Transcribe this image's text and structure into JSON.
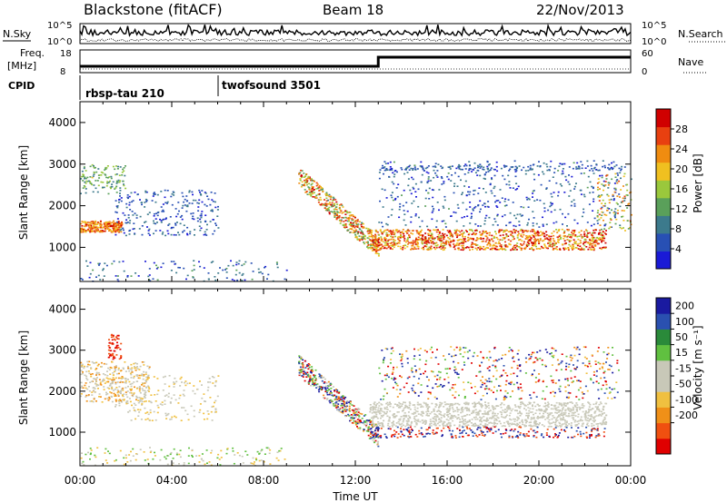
{
  "header": {
    "station": "Blackstone (fitACF)",
    "beam": "Beam 18",
    "date": "22/Nov/2013"
  },
  "top_panels": {
    "nsky_label": "N.Sky",
    "nsearch_label": "N.Search",
    "noise_ticks": [
      "10^5",
      "10^0"
    ],
    "freq_label_1": "Freq.",
    "freq_label_2": "[MHz]",
    "freq_ticks": [
      "18",
      "8"
    ],
    "nave_label": "Nave",
    "nave_ticks": [
      "60",
      "0"
    ],
    "cpid_label": "CPID",
    "cpid_segments": [
      {
        "name": "rbsp-tau 210",
        "start_hour": 0
      },
      {
        "name": "twofsound 3501",
        "start_hour": 6
      }
    ]
  },
  "colors": {
    "power_scale": [
      "#1a1ad6",
      "#2850b4",
      "#3c7a8c",
      "#5aa05a",
      "#9ac83c",
      "#f0c020",
      "#f08c10",
      "#e84010",
      "#d00000"
    ],
    "velocity_scale": [
      "#e00000",
      "#f05010",
      "#f09018",
      "#f0c040",
      "#c8c8b8",
      "#c8c8b8",
      "#60c040",
      "#2a8a3a",
      "#2a50b0",
      "#1a1aa0"
    ]
  },
  "chart_data": [
    {
      "type": "heatmap",
      "title": "Power",
      "ylabel": "Slant Range [km]",
      "xlabel": "Time UT",
      "x_ticks": [
        "00:00",
        "04:00",
        "08:00",
        "12:00",
        "16:00",
        "20:00",
        "00:00"
      ],
      "xlim_hours": [
        0,
        24
      ],
      "y_ticks": [
        1000,
        2000,
        3000,
        4000
      ],
      "ylim_km": [
        180,
        4500
      ],
      "colorbar_label": "Power [dB]",
      "colorbar_ticks": [
        4,
        8,
        12,
        16,
        20,
        24,
        28
      ],
      "colorbar_range": [
        0,
        32
      ],
      "features": [
        {
          "hours": [
            0,
            1.8
          ],
          "range_km": [
            1350,
            1650
          ],
          "dB": 24
        },
        {
          "hours": [
            9.5,
            13
          ],
          "range_km": [
            900,
            2800
          ],
          "dB": 20
        },
        {
          "hours": [
            12.5,
            23
          ],
          "range_km": [
            950,
            1450
          ],
          "dB": 26
        },
        {
          "hours": [
            13,
            23
          ],
          "range_km": [
            2800,
            3000
          ],
          "dB": 6
        }
      ]
    },
    {
      "type": "heatmap",
      "title": "Velocity",
      "ylabel": "Slant Range [km]",
      "xlabel": "Time UT",
      "x_ticks": [
        "00:00",
        "04:00",
        "08:00",
        "12:00",
        "16:00",
        "20:00",
        "00:00"
      ],
      "xlim_hours": [
        0,
        24
      ],
      "y_ticks": [
        1000,
        2000,
        3000,
        4000
      ],
      "ylim_km": [
        180,
        4500
      ],
      "colorbar_label": "Velocity [m s⁻¹]",
      "colorbar_ticks": [
        "200",
        "100",
        "50",
        "15",
        "-15",
        "-50",
        "-100",
        "-200"
      ],
      "features": [
        {
          "hours": [
            0,
            3
          ],
          "range_km": [
            1700,
            2700
          ],
          "velocity": 0
        },
        {
          "hours": [
            12.5,
            23
          ],
          "range_km": [
            1150,
            1750
          ],
          "velocity": 0
        },
        {
          "hours": [
            1.2,
            1.8
          ],
          "range_km": [
            2800,
            3400
          ],
          "velocity": -200
        }
      ]
    }
  ]
}
